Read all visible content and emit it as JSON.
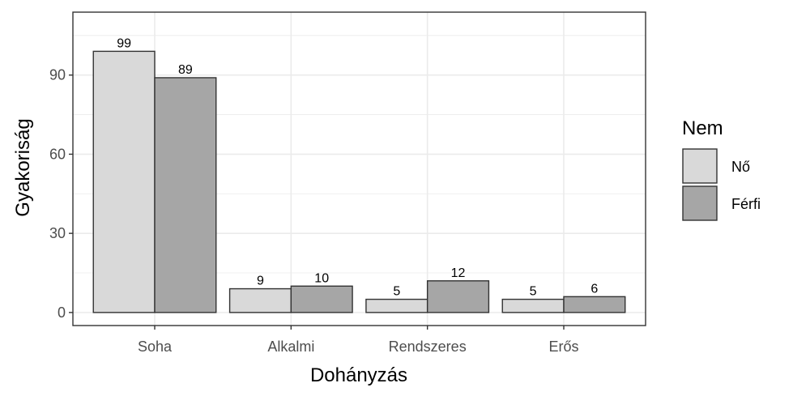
{
  "chart_data": {
    "type": "bar",
    "title": "",
    "xlabel": "Dohányzás",
    "ylabel": "Gyakoriság",
    "categories": [
      "Soha",
      "Alkalmi",
      "Rendszeres",
      "Erős"
    ],
    "series": [
      {
        "name": "Nő",
        "values": [
          99,
          9,
          5,
          5
        ],
        "color": "#d9d9d9"
      },
      {
        "name": "Férfi",
        "values": [
          89,
          10,
          12,
          6
        ],
        "color": "#a6a6a6"
      }
    ],
    "ylim": [
      -4.95,
      113.85
    ],
    "yticks": [
      0,
      30,
      60,
      90
    ],
    "ytick_labels": [
      "0",
      "30",
      "60",
      "90"
    ],
    "grid": true,
    "legend": {
      "title": "Nem",
      "position": "right"
    },
    "bar_outline_color": "#333333",
    "panel_border_color": "#333333",
    "grid_color": "#ebebeb"
  }
}
